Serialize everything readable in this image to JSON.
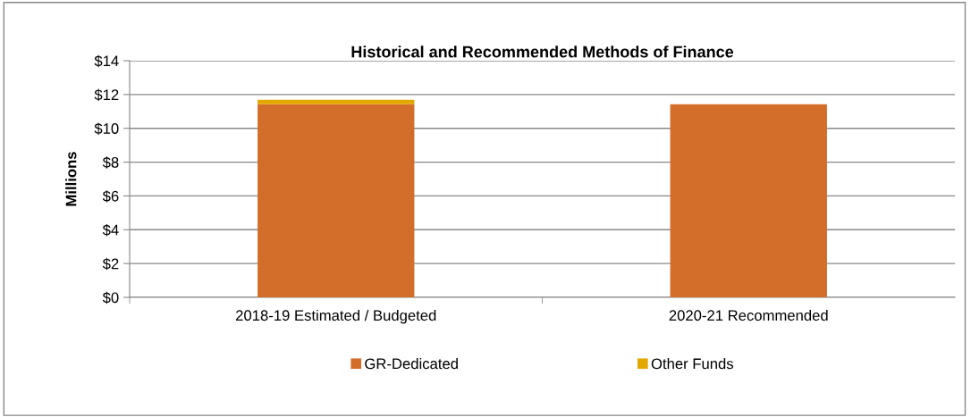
{
  "chart_data": {
    "type": "bar",
    "title": "Historical and Recommended Methods of Finance",
    "ylabel": "Millions",
    "categories": [
      "2018-19 Estimated / Budgeted",
      "2020-21 Recommended"
    ],
    "stacked": true,
    "series": [
      {
        "name": "GR-Dedicated",
        "color": "#d36e2a",
        "values": [
          11.43,
          11.43
        ]
      },
      {
        "name": "Other Funds",
        "color": "#e3a800",
        "values": [
          0.26,
          0
        ]
      }
    ],
    "ylim": [
      0,
      14
    ],
    "yticks": [
      {
        "value": 0,
        "label": "$0"
      },
      {
        "value": 2,
        "label": "$2"
      },
      {
        "value": 4,
        "label": "$4"
      },
      {
        "value": 6,
        "label": "$6"
      },
      {
        "value": 8,
        "label": "$8"
      },
      {
        "value": 10,
        "label": "$10"
      },
      {
        "value": 12,
        "label": "$12"
      },
      {
        "value": 14,
        "label": "$14"
      }
    ],
    "grid": "y",
    "legend": "bottom"
  }
}
